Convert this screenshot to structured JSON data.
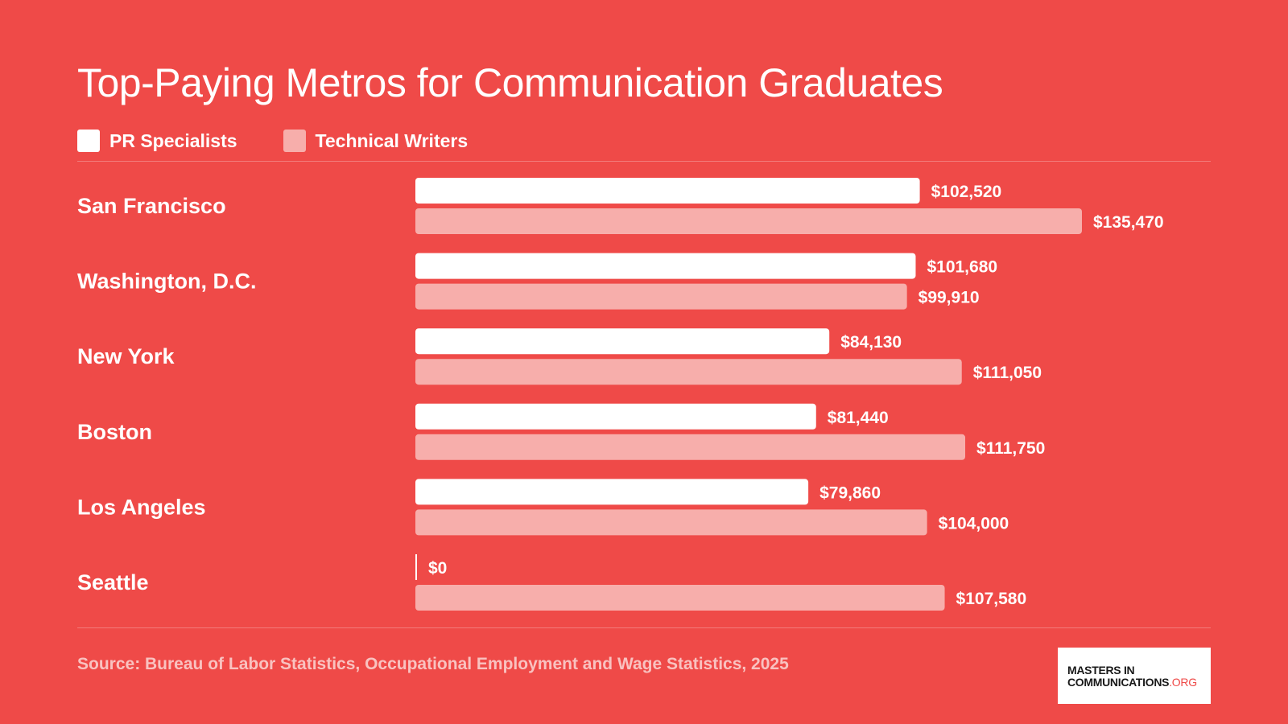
{
  "title": "Top-Paying Metros for Communication Graduates",
  "legend": [
    {
      "label": "PR Specialists",
      "color": "#ffffff"
    },
    {
      "label": "Technical Writers",
      "color": "#f7aeab"
    }
  ],
  "source": "Source: Bureau of Labor Statistics, Occupational Employment and Wage Statistics, 2025",
  "logo": {
    "line1": "MASTERS IN",
    "line2": "COMMUNICATIONS",
    "suffix": ".ORG"
  },
  "colors": {
    "background": "#ef4a48",
    "series_1": "#ffffff",
    "series_2": "#f7aeab"
  },
  "chart_data": {
    "type": "bar",
    "orientation": "horizontal",
    "title": "Top-Paying Metros for Communication Graduates",
    "categories": [
      "San Francisco",
      "Washington, D.C.",
      "New York",
      "Boston",
      "Los Angeles",
      "Seattle"
    ],
    "series": [
      {
        "name": "PR Specialists",
        "values": [
          102520,
          101680,
          84130,
          81440,
          79860,
          0
        ],
        "labels": [
          "$102,520",
          "$101,680",
          "$84,130",
          "$81,440",
          "$79,860",
          "$0"
        ]
      },
      {
        "name": "Technical Writers",
        "values": [
          135470,
          99910,
          111050,
          111750,
          104000,
          107580
        ],
        "labels": [
          "$135,470",
          "$99,910",
          "$111,050",
          "$111,750",
          "$104,000",
          "$107,580"
        ]
      }
    ],
    "xlim": [
      0,
      135470
    ],
    "grid": false,
    "legend_position": "top-left"
  }
}
